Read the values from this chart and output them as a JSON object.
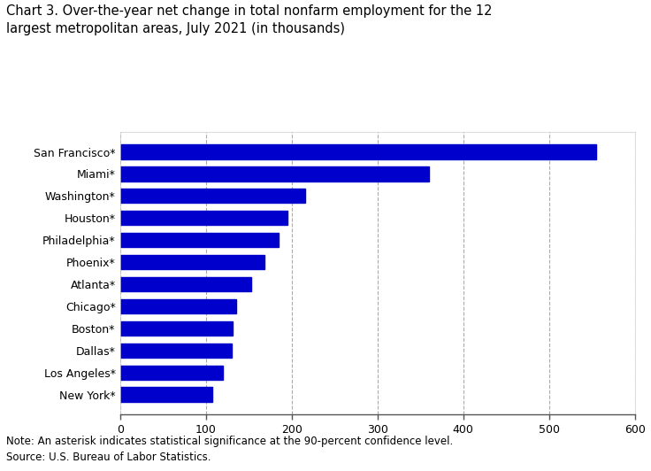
{
  "title": "Chart 3. Over-the-year net change in total nonfarm employment for the 12\nlargest metropolitan areas, July 2021 (in thousands)",
  "categories": [
    "New York*",
    "Los Angeles*",
    "Dallas*",
    "Boston*",
    "Chicago*",
    "Atlanta*",
    "Phoenix*",
    "Philadelphia*",
    "Houston*",
    "Washington*",
    "Miami*",
    "San Francisco*"
  ],
  "values": [
    555,
    360,
    215,
    195,
    185,
    168,
    153,
    135,
    131,
    130,
    120,
    107
  ],
  "bar_color": "#0000cc",
  "xlim": [
    0,
    600
  ],
  "xticks": [
    0,
    100,
    200,
    300,
    400,
    500,
    600
  ],
  "grid_color": "#aaaaaa",
  "note": "Note: An asterisk indicates statistical significance at the 90-percent confidence level.",
  "source": "Source: U.S. Bureau of Labor Statistics.",
  "fig_width": 7.36,
  "fig_height": 5.32,
  "dpi": 100
}
